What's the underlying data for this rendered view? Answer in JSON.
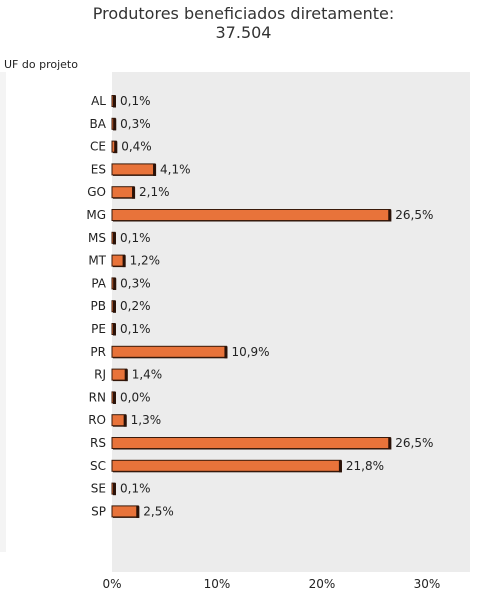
{
  "chart_data": {
    "type": "bar",
    "orientation": "horizontal",
    "title": "Produtores beneficiados diretamente:",
    "subtitle": "37.504",
    "ylabel": "UF do projeto",
    "xlabel": "",
    "categories": [
      "AL",
      "BA",
      "CE",
      "ES",
      "GO",
      "MG",
      "MS",
      "MT",
      "PA",
      "PB",
      "PE",
      "PR",
      "RJ",
      "RN",
      "RO",
      "RS",
      "SC",
      "SE",
      "SP"
    ],
    "values": [
      0.1,
      0.3,
      0.4,
      4.1,
      2.1,
      26.5,
      0.1,
      1.2,
      0.3,
      0.2,
      0.1,
      10.9,
      1.4,
      0.0,
      1.3,
      26.5,
      21.8,
      0.1,
      2.5
    ],
    "value_labels": [
      "0,1%",
      "0,3%",
      "0,4%",
      "4,1%",
      "2,1%",
      "26,5%",
      "0,1%",
      "1,2%",
      "0,3%",
      "0,2%",
      "0,1%",
      "10,9%",
      "1,4%",
      "0,0%",
      "1,3%",
      "26,5%",
      "21,8%",
      "0,1%",
      "2,5%"
    ],
    "xlim": [
      0,
      35
    ],
    "x_ticks": [
      0,
      10,
      20,
      30
    ],
    "x_tick_labels": [
      "0%",
      "10%",
      "20%",
      "30%"
    ],
    "grid": false,
    "colors": {
      "bar": "#e8733a",
      "bar_edge": "#3a1a0a",
      "bar_shadow": "#2a1208",
      "plot_bg": "#ececec"
    }
  }
}
